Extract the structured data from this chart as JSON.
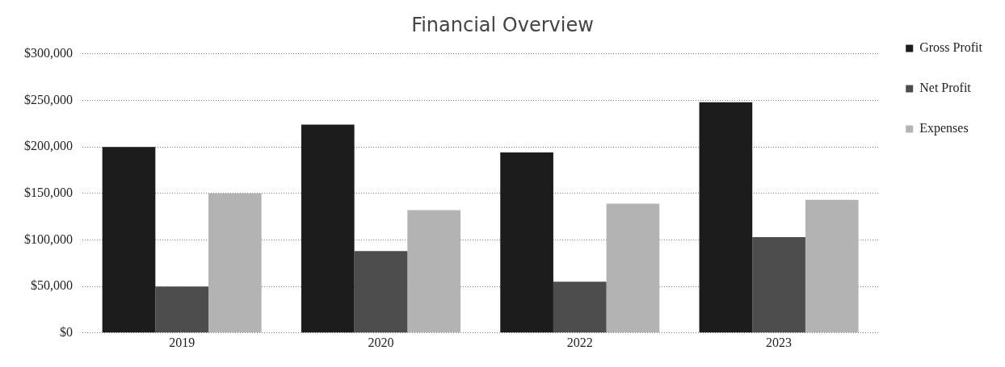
{
  "chart_data": {
    "type": "bar",
    "title": "Financial Overview",
    "categories": [
      "2019",
      "2020",
      "2022",
      "2023"
    ],
    "series": [
      {
        "name": "Gross Profit",
        "color": "#1c1c1c",
        "values": [
          200000,
          224000,
          194000,
          248000
        ]
      },
      {
        "name": "Net Profit",
        "color": "#4d4d4d",
        "values": [
          50000,
          88000,
          55000,
          103000
        ]
      },
      {
        "name": "Expenses",
        "color": "#b3b3b3",
        "values": [
          150000,
          132000,
          139000,
          143000
        ]
      }
    ],
    "ylim": [
      0,
      300000
    ],
    "yticks": [
      {
        "value": 0,
        "label": "$0"
      },
      {
        "value": 50000,
        "label": "$50,000"
      },
      {
        "value": 100000,
        "label": "$100,000"
      },
      {
        "value": 150000,
        "label": "$150,000"
      },
      {
        "value": 200000,
        "label": "$200,000"
      },
      {
        "value": 250000,
        "label": "$250,000"
      },
      {
        "value": 300000,
        "label": "$300,000"
      }
    ],
    "grid": "y",
    "legend": "right"
  }
}
